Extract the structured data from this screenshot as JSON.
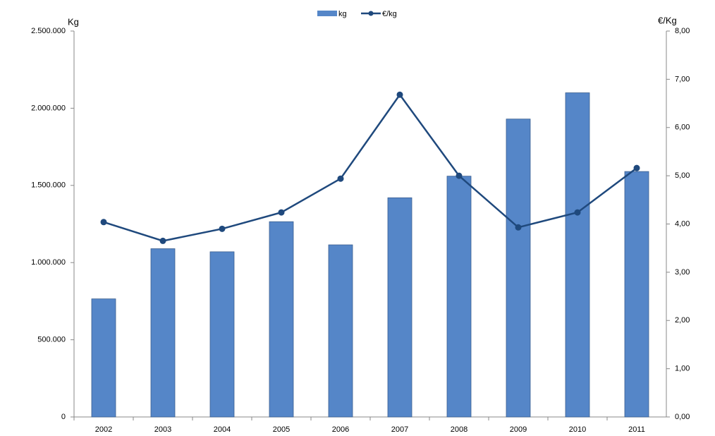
{
  "chart_data": {
    "type": "bar-line",
    "y_label": "Kg",
    "y2_label": "€/Kg",
    "categories": [
      "2002",
      "2003",
      "2004",
      "2005",
      "2006",
      "2007",
      "2008",
      "2009",
      "2010",
      "2011"
    ],
    "series": [
      {
        "name": "kg",
        "type": "bar",
        "color": "#5586c8",
        "values": [
          765000,
          1090000,
          1070000,
          1265000,
          1115000,
          1420000,
          1560000,
          1930000,
          2100000,
          1590000
        ]
      },
      {
        "name": "€/kg",
        "type": "line",
        "axis": "y2",
        "color": "#1f497d",
        "values": [
          4.04,
          3.65,
          3.9,
          4.24,
          4.94,
          6.68,
          5.0,
          3.93,
          4.24,
          5.16
        ]
      }
    ],
    "ylim": [
      0,
      2500000
    ],
    "yticks": [
      0,
      {
        "value": 500000,
        "label": "500.000"
      },
      {
        "value": 1000000,
        "label": "1.000.000"
      },
      {
        "value": 1500000,
        "label": "1.500.000"
      },
      {
        "value": 2000000,
        "label": "2.000.000"
      },
      {
        "value": 2500000,
        "label": "2.500.000"
      }
    ],
    "y2lim": [
      0,
      8
    ],
    "y2ticks": [
      {
        "value": 0,
        "label": "0,00"
      },
      {
        "value": 1,
        "label": "1,00"
      },
      {
        "value": 2,
        "label": "2,00"
      },
      {
        "value": 3,
        "label": "3,00"
      },
      {
        "value": 4,
        "label": "4,00"
      },
      {
        "value": 5,
        "label": "5,00"
      },
      {
        "value": 6,
        "label": "6,00"
      },
      {
        "value": 7,
        "label": "7,00"
      },
      {
        "value": 8,
        "label": "8,00"
      }
    ],
    "legend": "top"
  }
}
